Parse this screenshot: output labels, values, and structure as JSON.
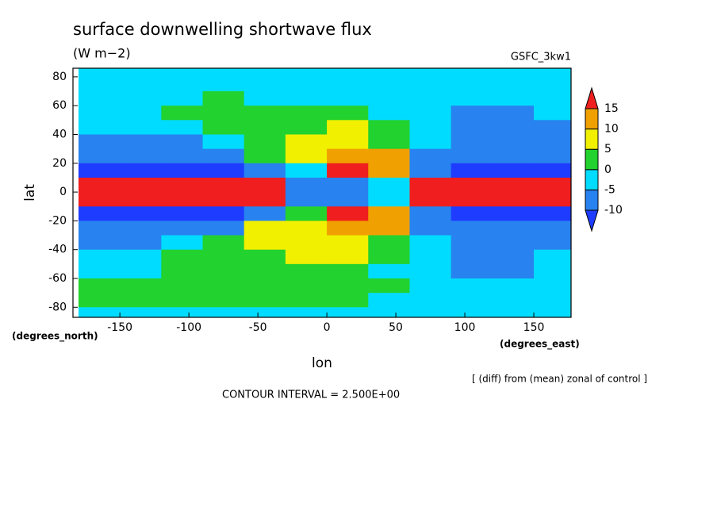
{
  "chart_data": {
    "type": "contour",
    "title": "surface downwelling shortwave flux",
    "subtitle": "(W m−2)",
    "run_label": "GSFC_3kw1",
    "xlabel": "lon",
    "ylabel": "lat",
    "xunits": "(degrees_east)",
    "yunits": "(degrees_north)",
    "note": "[ (diff) from (mean) zonal of control ]",
    "contour_interval": "CONTOUR INTERVAL = 2.500E+00",
    "xlim": [
      -184,
      177
    ],
    "ylim": [
      -87,
      86
    ],
    "xticks": [
      -150,
      -100,
      -50,
      0,
      50,
      100,
      150
    ],
    "yticks": [
      -80,
      -60,
      -40,
      -20,
      0,
      20,
      40,
      60,
      80
    ],
    "x": [
      -165,
      -135,
      -105,
      -75,
      -45,
      -15,
      15,
      45,
      75,
      105,
      135,
      165
    ],
    "y": [
      85,
      75,
      65,
      55,
      45,
      35,
      25,
      15,
      5,
      -5,
      -15,
      -25,
      -35,
      -45,
      -55,
      -65,
      -75,
      -85
    ],
    "z": [
      [
        -3,
        -3,
        -3,
        -3,
        -3,
        -3,
        -3,
        -3,
        -3,
        -3,
        -3,
        -3
      ],
      [
        -3,
        -3,
        -3,
        -3,
        -3,
        -3,
        -3,
        -4,
        -4,
        -3,
        -3,
        -3
      ],
      [
        -3,
        -3,
        -3,
        2,
        -2,
        -3,
        -3,
        -3,
        -3,
        -3,
        -3,
        -3
      ],
      [
        -3,
        -2,
        2,
        2,
        2,
        3,
        3,
        -2,
        -4,
        -6,
        -6,
        -3
      ],
      [
        -4,
        -4,
        -4,
        2,
        3,
        3,
        6,
        3,
        -3,
        -6,
        -7,
        -6
      ],
      [
        -8,
        -8,
        -7,
        -3,
        2,
        7,
        8,
        4,
        -4,
        -8,
        -8,
        -8
      ],
      [
        -8,
        -8,
        -8,
        -6,
        3,
        8,
        13,
        12,
        -6,
        -8,
        -8,
        -8
      ],
      [
        -12,
        -12,
        -12,
        -11,
        -8,
        -3,
        16,
        12,
        -8,
        -12,
        -12,
        -12
      ],
      [
        16,
        16,
        16,
        16,
        16,
        -6,
        -8,
        -4,
        16,
        16,
        16,
        16
      ],
      [
        16,
        16,
        16,
        16,
        16,
        -6,
        -8,
        -4,
        16,
        16,
        16,
        16
      ],
      [
        -12,
        -12,
        -12,
        -11,
        -8,
        4,
        16,
        12,
        -8,
        -12,
        -12,
        -12
      ],
      [
        -8,
        -8,
        -8,
        -6,
        6,
        8,
        13,
        12,
        -6,
        -8,
        -8,
        -8
      ],
      [
        -8,
        -7,
        -4,
        3,
        6,
        8,
        9,
        3,
        -5,
        -7,
        -8,
        -8
      ],
      [
        -4,
        -4,
        2,
        3,
        4,
        7,
        8,
        2,
        -4,
        -6,
        -7,
        -5
      ],
      [
        -3,
        -2,
        2,
        2,
        2,
        3,
        2,
        -2,
        -4,
        -6,
        -6,
        -3
      ],
      [
        2,
        2,
        2,
        2,
        2,
        2,
        2,
        2,
        -3,
        -3,
        -3,
        -3
      ],
      [
        2,
        2,
        2,
        2,
        2,
        2,
        2,
        -2,
        -3,
        -3,
        -3,
        -3
      ],
      [
        -3,
        -3,
        -3,
        -3,
        -3,
        -3,
        -3,
        -3,
        -3,
        -3,
        -3,
        -3
      ]
    ],
    "levels": [
      -10,
      -5,
      0,
      5,
      10,
      15
    ],
    "colors": [
      "#1e3cff",
      "#2882f0",
      "#00dcff",
      "#22d22e",
      "#f0f000",
      "#f0a000",
      "#f01e1e"
    ]
  }
}
